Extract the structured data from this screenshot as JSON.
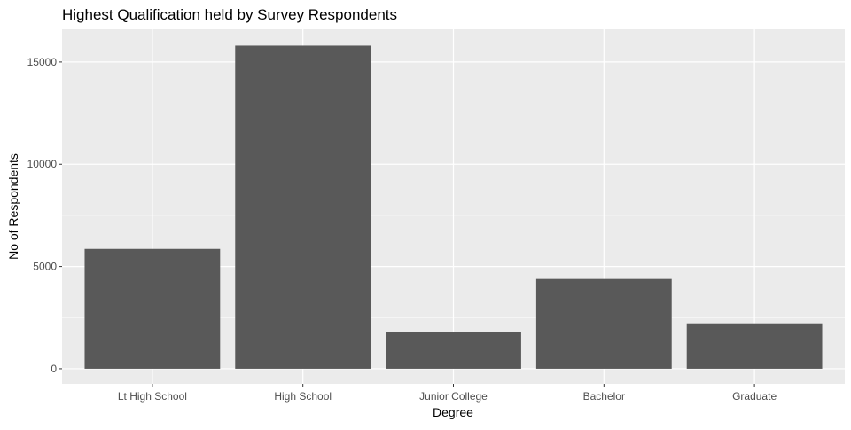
{
  "chart_data": {
    "type": "bar",
    "title": "Highest Qualification held by Survey Respondents",
    "xlabel": "Degree",
    "ylabel": "No of Respondents",
    "categories": [
      "Lt High School",
      "High School",
      "Junior College",
      "Bachelor",
      "Graduate"
    ],
    "values": [
      5860,
      15800,
      1780,
      4390,
      2220
    ],
    "ylim": [
      -740,
      16600
    ],
    "yticks": [
      0,
      5000,
      10000,
      15000
    ],
    "ytick_labels": [
      "0",
      "5000",
      "10000",
      "15000"
    ],
    "grid": true,
    "legend": "none",
    "colors": {
      "bar": "#595959",
      "panel": "#ebebeb",
      "grid": "#ffffff",
      "tick_label": "#4d4d4d",
      "tick_mark": "#333333"
    }
  }
}
